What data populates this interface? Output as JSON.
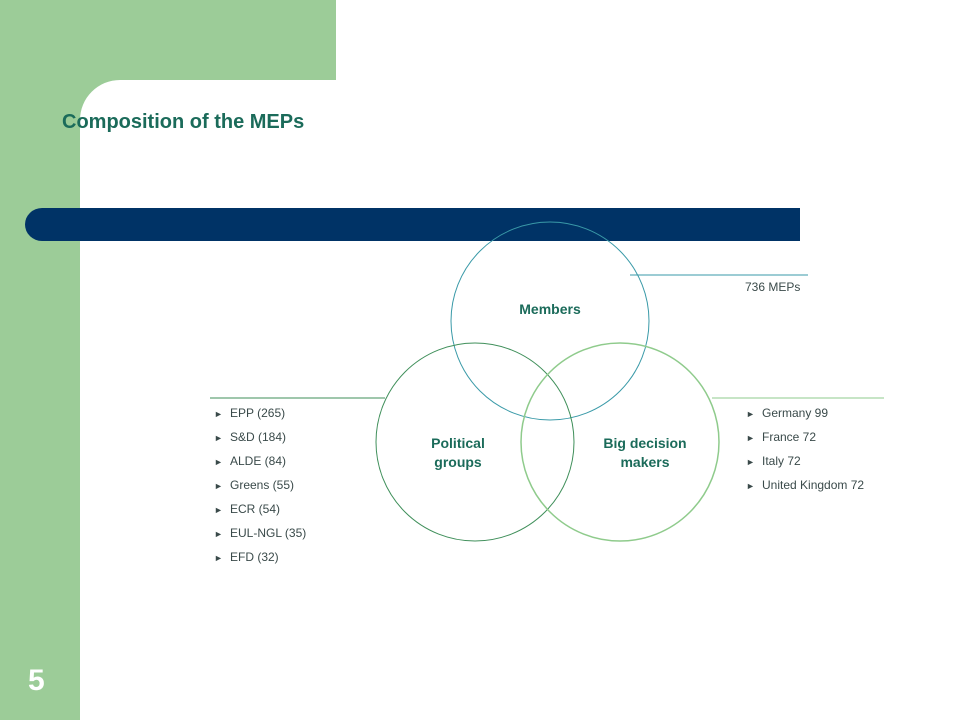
{
  "slide": {
    "title": "Composition of the MEPs",
    "number": "5"
  },
  "diagram": {
    "members_label": "Members",
    "political_label_line1": "Political",
    "political_label_line2": "groups",
    "decision_label_line1": "Big decision",
    "decision_label_line2": "makers",
    "meps_total": "736 MEPs"
  },
  "political_groups": [
    "EPP (265)",
    "S&D (184)",
    "ALDE (84)",
    "Greens (55)",
    "ECR (54)",
    "EUL-NGL (35)",
    "EFD (32)"
  ],
  "big_decision_makers": [
    "Germany 99",
    "France 72",
    "Italy 72",
    "United Kingdom 72"
  ],
  "colors": {
    "green_band": "#9ccc98",
    "navy_bar": "#003366",
    "title_teal": "#1b6b5a",
    "members_circle": "#3a9aa8",
    "political_circle": "#3f8f5a",
    "decision_circle": "#8fcb8c"
  }
}
